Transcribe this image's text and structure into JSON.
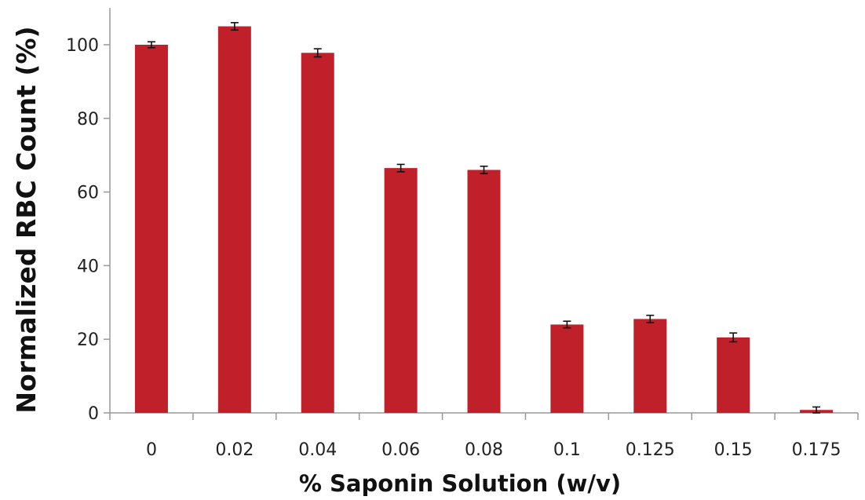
{
  "chart_data": {
    "type": "bar",
    "categories": [
      "0",
      "0.02",
      "0.04",
      "0.06",
      "0.08",
      "0.1",
      "0.125",
      "0.15",
      "0.175"
    ],
    "values": [
      100,
      105,
      97.8,
      66.5,
      66,
      24,
      25.5,
      20.5,
      0.8
    ],
    "errors": [
      0.8,
      1.0,
      1.1,
      1.0,
      1.0,
      0.9,
      1.0,
      1.2,
      0.8
    ],
    "title": "",
    "xlabel": "% Saponin Solution (w/v)",
    "ylabel": "Normalized RBC Count (%)",
    "ylim": [
      0,
      110
    ],
    "yticks": [
      "0",
      "20",
      "40",
      "60",
      "80",
      "100"
    ],
    "grid": false,
    "legend": "none",
    "bar_color": "#C0202A"
  }
}
